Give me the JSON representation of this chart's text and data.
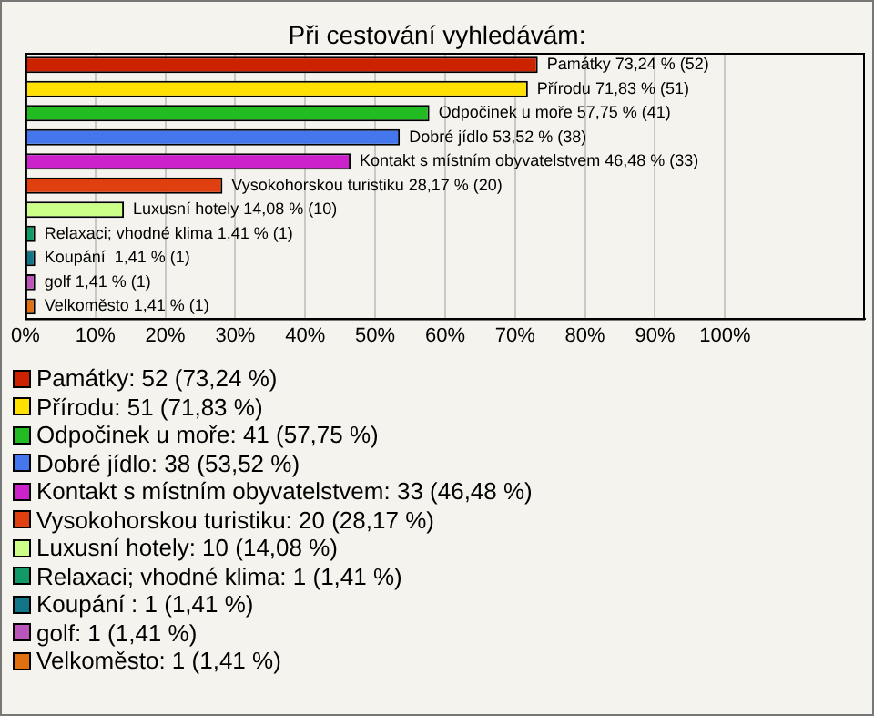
{
  "chart_data": {
    "type": "bar",
    "title": "Při cestování vyhledávám:",
    "orientation": "horizontal",
    "stacked": true,
    "grid": "x",
    "legend": "bottom",
    "tick_labels": "x",
    "categories": [
      null,
      null,
      null,
      null,
      null,
      null,
      null,
      null,
      null,
      null,
      null
    ],
    "xlim": [
      0,
      120
    ],
    "xticks": [
      {
        "value": 0,
        "label": "0%"
      },
      {
        "value": 10,
        "label": "10%"
      },
      {
        "value": 20,
        "label": "20%"
      },
      {
        "value": 30,
        "label": "30%"
      },
      {
        "value": 40,
        "label": "40%"
      },
      {
        "value": 50,
        "label": "50%"
      },
      {
        "value": 60,
        "label": "60%"
      },
      {
        "value": 70,
        "label": "70%"
      },
      {
        "value": 80,
        "label": "80%"
      },
      {
        "value": 90,
        "label": "90%"
      },
      {
        "value": 100,
        "label": "100%"
      }
    ],
    "series": [
      {
        "name": "Památky: 52 (73,24 %)",
        "color": "#cc2200",
        "values": [
          73.24,
          null,
          null,
          null,
          null,
          null,
          null,
          null,
          null,
          null,
          null
        ],
        "value_labels": [
          "Památky 73,24 % (52)",
          null,
          null,
          null,
          null,
          null,
          null,
          null,
          null,
          null,
          null
        ]
      },
      {
        "name": "Přírodu: 51 (71,83 %)",
        "color": "#ffe000",
        "values": [
          null,
          71.83,
          null,
          null,
          null,
          null,
          null,
          null,
          null,
          null,
          null
        ],
        "value_labels": [
          null,
          "Přírodu 71,83 % (51)",
          null,
          null,
          null,
          null,
          null,
          null,
          null,
          null,
          null
        ]
      },
      {
        "name": "Odpočinek u moře: 41 (57,75 %)",
        "color": "#22bb22",
        "values": [
          null,
          null,
          57.75,
          null,
          null,
          null,
          null,
          null,
          null,
          null,
          null
        ],
        "value_labels": [
          null,
          null,
          "Odpočinek u moře 57,75 % (41)",
          null,
          null,
          null,
          null,
          null,
          null,
          null,
          null
        ]
      },
      {
        "name": "Dobré jídlo: 38 (53,52 %)",
        "color": "#4477ee",
        "values": [
          null,
          null,
          null,
          53.52,
          null,
          null,
          null,
          null,
          null,
          null,
          null
        ],
        "value_labels": [
          null,
          null,
          null,
          "Dobré jídlo 53,52 % (38)",
          null,
          null,
          null,
          null,
          null,
          null,
          null
        ]
      },
      {
        "name": "Kontakt s místním obyvatelstvem: 33 (46,48 %)",
        "color": "#cc22cc",
        "values": [
          null,
          null,
          null,
          null,
          46.48,
          null,
          null,
          null,
          null,
          null,
          null
        ],
        "value_labels": [
          null,
          null,
          null,
          null,
          "Kontakt s místním obyvatelstvem 46,48 % (33)",
          null,
          null,
          null,
          null,
          null,
          null
        ]
      },
      {
        "name": "Vysokohorskou turistiku: 20 (28,17 %)",
        "color": "#e04010",
        "values": [
          null,
          null,
          null,
          null,
          null,
          28.17,
          null,
          null,
          null,
          null,
          null
        ],
        "value_labels": [
          null,
          null,
          null,
          null,
          null,
          "Vysokohorskou turistiku 28,17 % (20)",
          null,
          null,
          null,
          null,
          null
        ]
      },
      {
        "name": "Luxusní hotely: 10 (14,08 %)",
        "color": "#ccff88",
        "values": [
          null,
          null,
          null,
          null,
          null,
          null,
          14.08,
          null,
          null,
          null,
          null
        ],
        "value_labels": [
          null,
          null,
          null,
          null,
          null,
          null,
          "Luxusní hotely 14,08 % (10)",
          null,
          null,
          null,
          null
        ]
      },
      {
        "name": "Relaxaci; vhodné klima: 1 (1,41 %)",
        "color": "#119966",
        "values": [
          null,
          null,
          null,
          null,
          null,
          null,
          null,
          1.41,
          null,
          null,
          null
        ],
        "value_labels": [
          null,
          null,
          null,
          null,
          null,
          null,
          null,
          "Relaxaci; vhodné klima 1,41 % (1)",
          null,
          null,
          null
        ]
      },
      {
        "name": "Koupání : 1 (1,41 %)",
        "color": "#117788",
        "values": [
          null,
          null,
          null,
          null,
          null,
          null,
          null,
          null,
          1.41,
          null,
          null
        ],
        "value_labels": [
          null,
          null,
          null,
          null,
          null,
          null,
          null,
          null,
          "Koupání  1,41 % (1)",
          null,
          null
        ]
      },
      {
        "name": "golf: 1 (1,41 %)",
        "color": "#bb55bb",
        "values": [
          null,
          null,
          null,
          null,
          null,
          null,
          null,
          null,
          null,
          1.41,
          null
        ],
        "value_labels": [
          null,
          null,
          null,
          null,
          null,
          null,
          null,
          null,
          null,
          "golf 1,41 % (1)",
          null
        ]
      },
      {
        "name": "Velkoměsto: 1 (1,41 %)",
        "color": "#e07010",
        "values": [
          null,
          null,
          null,
          null,
          null,
          null,
          null,
          null,
          null,
          null,
          1.41
        ],
        "value_labels": [
          null,
          null,
          null,
          null,
          null,
          null,
          null,
          null,
          null,
          null,
          "Velkoměsto 1,41 % (1)"
        ]
      }
    ]
  }
}
